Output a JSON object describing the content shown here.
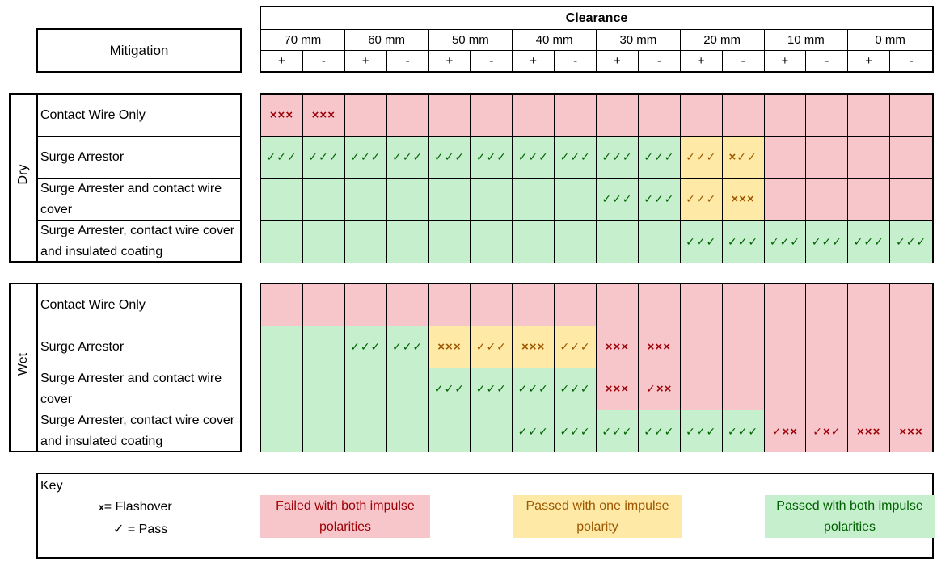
{
  "header": {
    "clearance": "Clearance",
    "mitigation": "Mitigation",
    "clearances": [
      "70 mm",
      "60 mm",
      "50 mm",
      "40 mm",
      "30 mm",
      "20 mm",
      "10 mm",
      "0 mm"
    ],
    "polarities": [
      "+",
      "-"
    ]
  },
  "sections": [
    {
      "condition": "Dry",
      "rows": [
        {
          "label": "Contact Wire Only",
          "cells": [
            {
              "c": "red",
              "s": "xxx"
            },
            {
              "c": "red",
              "s": "xxx"
            },
            {
              "c": "red",
              "s": ""
            },
            {
              "c": "red",
              "s": ""
            },
            {
              "c": "red",
              "s": ""
            },
            {
              "c": "red",
              "s": ""
            },
            {
              "c": "red",
              "s": ""
            },
            {
              "c": "red",
              "s": ""
            },
            {
              "c": "red",
              "s": ""
            },
            {
              "c": "red",
              "s": ""
            },
            {
              "c": "red",
              "s": ""
            },
            {
              "c": "red",
              "s": ""
            },
            {
              "c": "red",
              "s": ""
            },
            {
              "c": "red",
              "s": ""
            },
            {
              "c": "red",
              "s": ""
            },
            {
              "c": "red",
              "s": ""
            }
          ]
        },
        {
          "label": "Surge Arrestor",
          "cells": [
            {
              "c": "green",
              "s": "✓✓✓"
            },
            {
              "c": "green",
              "s": "✓✓✓"
            },
            {
              "c": "green",
              "s": "✓✓✓"
            },
            {
              "c": "green",
              "s": "✓✓✓"
            },
            {
              "c": "green",
              "s": "✓✓✓"
            },
            {
              "c": "green",
              "s": "✓✓✓"
            },
            {
              "c": "green",
              "s": "✓✓✓"
            },
            {
              "c": "green",
              "s": "✓✓✓"
            },
            {
              "c": "green",
              "s": "✓✓✓"
            },
            {
              "c": "green",
              "s": "✓✓✓"
            },
            {
              "c": "amber",
              "s": "✓✓✓"
            },
            {
              "c": "amber",
              "s": "x✓✓"
            },
            {
              "c": "red",
              "s": ""
            },
            {
              "c": "red",
              "s": ""
            },
            {
              "c": "red",
              "s": ""
            },
            {
              "c": "red",
              "s": ""
            }
          ]
        },
        {
          "label": "Surge Arrester and contact wire cover",
          "cells": [
            {
              "c": "green",
              "s": ""
            },
            {
              "c": "green",
              "s": ""
            },
            {
              "c": "green",
              "s": ""
            },
            {
              "c": "green",
              "s": ""
            },
            {
              "c": "green",
              "s": ""
            },
            {
              "c": "green",
              "s": ""
            },
            {
              "c": "green",
              "s": ""
            },
            {
              "c": "green",
              "s": ""
            },
            {
              "c": "green",
              "s": "✓✓✓"
            },
            {
              "c": "green",
              "s": "✓✓✓"
            },
            {
              "c": "amber",
              "s": "✓✓✓"
            },
            {
              "c": "amber",
              "s": "xxx"
            },
            {
              "c": "red",
              "s": ""
            },
            {
              "c": "red",
              "s": ""
            },
            {
              "c": "red",
              "s": ""
            },
            {
              "c": "red",
              "s": ""
            }
          ]
        },
        {
          "label": "Surge Arrester, contact wire cover and insulated coating",
          "cells": [
            {
              "c": "green",
              "s": ""
            },
            {
              "c": "green",
              "s": ""
            },
            {
              "c": "green",
              "s": ""
            },
            {
              "c": "green",
              "s": ""
            },
            {
              "c": "green",
              "s": ""
            },
            {
              "c": "green",
              "s": ""
            },
            {
              "c": "green",
              "s": ""
            },
            {
              "c": "green",
              "s": ""
            },
            {
              "c": "green",
              "s": ""
            },
            {
              "c": "green",
              "s": ""
            },
            {
              "c": "green",
              "s": "✓✓✓"
            },
            {
              "c": "green",
              "s": "✓✓✓"
            },
            {
              "c": "green",
              "s": "✓✓✓"
            },
            {
              "c": "green",
              "s": "✓✓✓"
            },
            {
              "c": "green",
              "s": "✓✓✓"
            },
            {
              "c": "green",
              "s": "✓✓✓"
            }
          ]
        }
      ]
    },
    {
      "condition": "Wet",
      "rows": [
        {
          "label": "Contact Wire Only",
          "cells": [
            {
              "c": "red",
              "s": ""
            },
            {
              "c": "red",
              "s": ""
            },
            {
              "c": "red",
              "s": ""
            },
            {
              "c": "red",
              "s": ""
            },
            {
              "c": "red",
              "s": ""
            },
            {
              "c": "red",
              "s": ""
            },
            {
              "c": "red",
              "s": ""
            },
            {
              "c": "red",
              "s": ""
            },
            {
              "c": "red",
              "s": ""
            },
            {
              "c": "red",
              "s": ""
            },
            {
              "c": "red",
              "s": ""
            },
            {
              "c": "red",
              "s": ""
            },
            {
              "c": "red",
              "s": ""
            },
            {
              "c": "red",
              "s": ""
            },
            {
              "c": "red",
              "s": ""
            },
            {
              "c": "red",
              "s": ""
            }
          ]
        },
        {
          "label": "Surge Arrestor",
          "cells": [
            {
              "c": "green",
              "s": ""
            },
            {
              "c": "green",
              "s": ""
            },
            {
              "c": "green",
              "s": "✓✓✓"
            },
            {
              "c": "green",
              "s": "✓✓✓"
            },
            {
              "c": "amber",
              "s": "xxx"
            },
            {
              "c": "amber",
              "s": "✓✓✓"
            },
            {
              "c": "amber",
              "s": "xxx"
            },
            {
              "c": "amber",
              "s": "✓✓✓"
            },
            {
              "c": "red",
              "s": "xxx"
            },
            {
              "c": "red",
              "s": "xxx"
            },
            {
              "c": "red",
              "s": ""
            },
            {
              "c": "red",
              "s": ""
            },
            {
              "c": "red",
              "s": ""
            },
            {
              "c": "red",
              "s": ""
            },
            {
              "c": "red",
              "s": ""
            },
            {
              "c": "red",
              "s": ""
            }
          ]
        },
        {
          "label": "Surge Arrester and contact wire cover",
          "cells": [
            {
              "c": "green",
              "s": ""
            },
            {
              "c": "green",
              "s": ""
            },
            {
              "c": "green",
              "s": ""
            },
            {
              "c": "green",
              "s": ""
            },
            {
              "c": "green",
              "s": "✓✓✓"
            },
            {
              "c": "green",
              "s": "✓✓✓"
            },
            {
              "c": "green",
              "s": "✓✓✓"
            },
            {
              "c": "green",
              "s": "✓✓✓"
            },
            {
              "c": "red",
              "s": "xxx"
            },
            {
              "c": "red",
              "s": "✓xx"
            },
            {
              "c": "red",
              "s": ""
            },
            {
              "c": "red",
              "s": ""
            },
            {
              "c": "red",
              "s": ""
            },
            {
              "c": "red",
              "s": ""
            },
            {
              "c": "red",
              "s": ""
            },
            {
              "c": "red",
              "s": ""
            }
          ]
        },
        {
          "label": "Surge Arrester, contact wire cover and insulated coating",
          "cells": [
            {
              "c": "green",
              "s": ""
            },
            {
              "c": "green",
              "s": ""
            },
            {
              "c": "green",
              "s": ""
            },
            {
              "c": "green",
              "s": ""
            },
            {
              "c": "green",
              "s": ""
            },
            {
              "c": "green",
              "s": ""
            },
            {
              "c": "green",
              "s": "✓✓✓"
            },
            {
              "c": "green",
              "s": "✓✓✓"
            },
            {
              "c": "green",
              "s": "✓✓✓"
            },
            {
              "c": "green",
              "s": "✓✓✓"
            },
            {
              "c": "green",
              "s": "✓✓✓"
            },
            {
              "c": "green",
              "s": "✓✓✓"
            },
            {
              "c": "red",
              "s": "✓xx"
            },
            {
              "c": "red",
              "s": "✓x✓"
            },
            {
              "c": "red",
              "s": "xxx"
            },
            {
              "c": "red",
              "s": "xxx"
            }
          ]
        }
      ]
    }
  ],
  "key": {
    "title": "Key",
    "flashover": "= Flashover",
    "flashover_symbol": "x",
    "pass": "= Pass",
    "pass_symbol": "✓",
    "failed": "Failed with both impulse polarities",
    "one": "Passed with one impulse polarity",
    "both": "Passed with both impulse polarities"
  },
  "colors": {
    "red_fill": "#f7c6cb",
    "red_text": "#9c0006",
    "amber_fill": "#feeaa6",
    "amber_text": "#9c5700",
    "green_fill": "#c6efce",
    "green_text": "#006100"
  }
}
